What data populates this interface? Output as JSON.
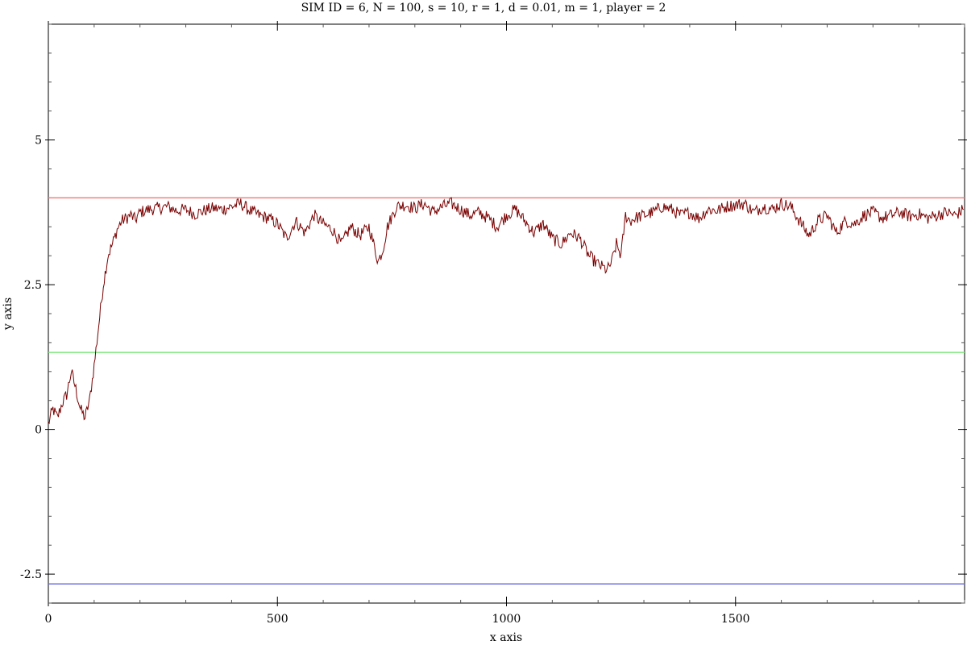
{
  "chart_data": {
    "type": "line",
    "title": "SIM ID = 6, N = 100, s = 10, r = 1, d = 0.01, m = 1, player = 2",
    "xlabel": "x axis",
    "ylabel": "y axis",
    "xlim": [
      0,
      2000
    ],
    "ylim": [
      -3,
      7
    ],
    "x_major_ticks": [
      0,
      500,
      1000,
      1500
    ],
    "x_tick_labels": [
      "0",
      "500",
      "1000",
      "1500"
    ],
    "x_minor_step": 100,
    "y_major_ticks": [
      -2.5,
      0,
      2.5,
      5
    ],
    "y_tick_labels": [
      "-2.5",
      "0",
      "2.5",
      "5"
    ],
    "y_minor_step": 0.5,
    "grid": false,
    "colors": {
      "series": "#7a0000",
      "upper_reference": "#f08080",
      "middle_reference": "#7fe87f",
      "lower_reference": "#7070e0",
      "axis": "#000000",
      "tick": "#555555"
    },
    "reference_lines": [
      {
        "y": 4.0,
        "color": "#f08080"
      },
      {
        "y": 1.33,
        "color": "#7fe87f"
      },
      {
        "y": -2.67,
        "color": "#7070e0"
      }
    ],
    "series": [
      {
        "x": [
          0,
          10,
          20,
          30,
          40,
          50,
          60,
          70,
          80,
          90,
          100,
          110,
          120,
          130,
          140,
          150,
          160,
          170,
          180,
          190,
          200,
          220,
          240,
          260,
          280,
          300,
          320,
          340,
          360,
          380,
          400,
          420,
          440,
          460,
          480,
          500,
          520,
          540,
          560,
          580,
          600,
          620,
          640,
          660,
          680,
          700,
          720,
          730,
          740,
          760,
          780,
          800,
          820,
          840,
          860,
          880,
          900,
          920,
          940,
          960,
          980,
          1000,
          1020,
          1040,
          1060,
          1080,
          1100,
          1120,
          1140,
          1160,
          1180,
          1200,
          1220,
          1230,
          1240,
          1250,
          1260,
          1270,
          1280,
          1300,
          1320,
          1340,
          1360,
          1380,
          1400,
          1420,
          1440,
          1460,
          1480,
          1500,
          1520,
          1540,
          1560,
          1580,
          1600,
          1620,
          1640,
          1660,
          1680,
          1700,
          1720,
          1740,
          1760,
          1780,
          1800,
          1820,
          1840,
          1860,
          1880,
          1900,
          1920,
          1940,
          1960,
          1980,
          1998
        ],
        "values": [
          0.1,
          0.35,
          0.2,
          0.45,
          0.6,
          1.0,
          0.7,
          0.35,
          0.2,
          0.5,
          1.1,
          1.8,
          2.5,
          3.0,
          3.2,
          3.45,
          3.6,
          3.65,
          3.7,
          3.62,
          3.75,
          3.8,
          3.82,
          3.85,
          3.78,
          3.8,
          3.72,
          3.78,
          3.82,
          3.8,
          3.85,
          3.9,
          3.78,
          3.7,
          3.65,
          3.55,
          3.3,
          3.6,
          3.4,
          3.7,
          3.55,
          3.45,
          3.2,
          3.5,
          3.35,
          3.5,
          2.9,
          3.1,
          3.5,
          3.85,
          3.88,
          3.82,
          3.9,
          3.75,
          3.85,
          3.9,
          3.8,
          3.7,
          3.75,
          3.65,
          3.5,
          3.7,
          3.8,
          3.6,
          3.4,
          3.55,
          3.3,
          3.2,
          3.4,
          3.3,
          3.0,
          2.85,
          2.75,
          2.9,
          3.2,
          3.0,
          3.7,
          3.6,
          3.65,
          3.7,
          3.75,
          3.85,
          3.8,
          3.7,
          3.75,
          3.65,
          3.8,
          3.78,
          3.85,
          3.88,
          3.9,
          3.75,
          3.85,
          3.8,
          3.9,
          3.85,
          3.6,
          3.35,
          3.6,
          3.7,
          3.4,
          3.6,
          3.55,
          3.7,
          3.75,
          3.65,
          3.7,
          3.75,
          3.68,
          3.72,
          3.65,
          3.7,
          3.75,
          3.7,
          3.8
        ]
      }
    ]
  }
}
